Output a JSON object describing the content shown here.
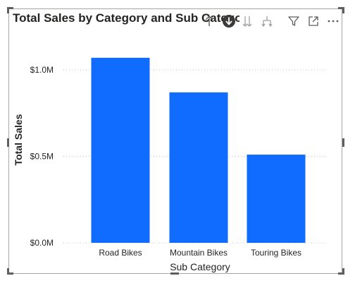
{
  "visual": {
    "title": "Total Sales by Category and Sub Category",
    "toolbar": [
      {
        "name": "drill-up-icon",
        "label": "Drill up"
      },
      {
        "name": "drill-down-mode-icon",
        "label": "Click to turn on Drill down"
      },
      {
        "name": "go-to-next-level-icon",
        "label": "Go to the next level in the hierarchy"
      },
      {
        "name": "expand-next-level-icon",
        "label": "Expand all down one level in the hierarchy"
      },
      {
        "name": "filter-icon",
        "label": "Filter"
      },
      {
        "name": "focus-mode-icon",
        "label": "Focus mode"
      },
      {
        "name": "more-options-icon",
        "label": "More options"
      }
    ]
  },
  "colors": {
    "bar": "#0f6cff",
    "gridline": "#c8c8c8",
    "text": "#252423",
    "border": "#a6a6a6"
  },
  "chart_data": {
    "type": "bar",
    "categories": [
      "Road Bikes",
      "Mountain Bikes",
      "Touring Bikes"
    ],
    "values": [
      1.07,
      0.87,
      0.51
    ],
    "value_unit": "$M",
    "xlabel": "Sub Category",
    "ylabel": "Total Sales",
    "ylim": [
      0,
      1.0
    ],
    "yticks": [
      {
        "value": 0.0,
        "label": "$0.0M"
      },
      {
        "value": 0.5,
        "label": "$0.5M"
      },
      {
        "value": 1.0,
        "label": "$1.0M"
      }
    ],
    "grid": true,
    "legend": "none"
  }
}
